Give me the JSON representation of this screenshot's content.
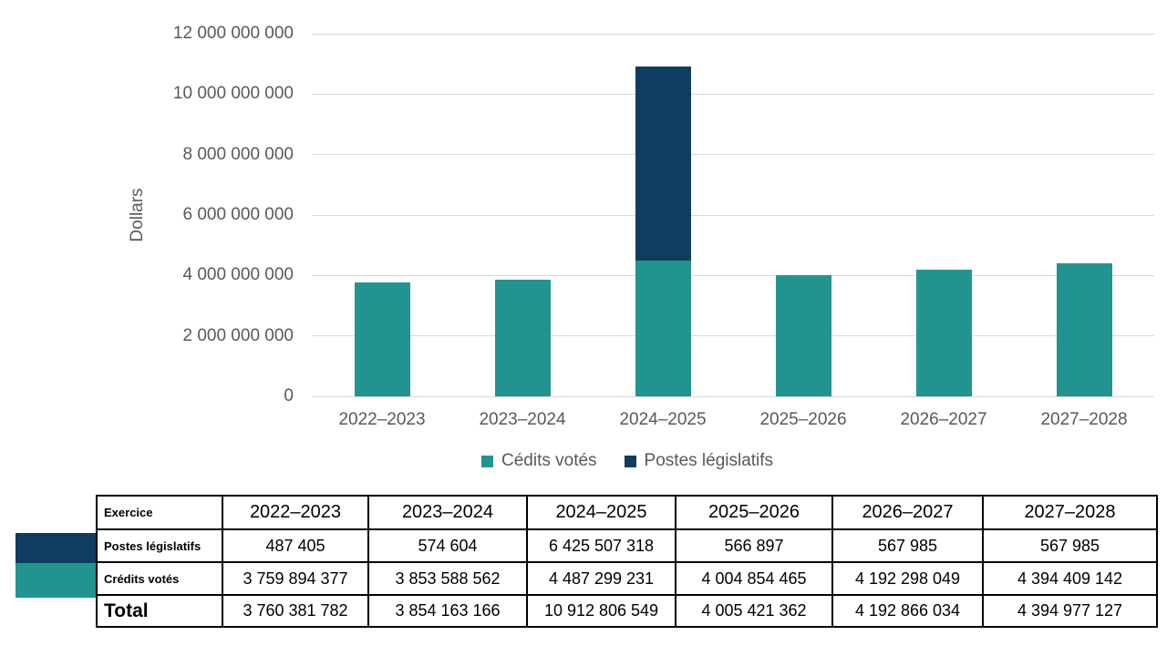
{
  "colors": {
    "teal": "#21948F",
    "navy": "#0E3D5F",
    "axis_text": "#595959",
    "gridline": "#D9D9D9",
    "table_border": "#000000"
  },
  "chart_data": {
    "type": "bar",
    "stacked": true,
    "title": "",
    "xlabel": "",
    "ylabel": "Dollars",
    "ylim": [
      0,
      12000000000
    ],
    "ytick_step": 2000000000,
    "ytick_labels": [
      "0",
      "2 000 000 000",
      "4 000 000 000",
      "6 000 000 000",
      "8 000 000 000",
      "10 000 000 000",
      "12 000 000 000"
    ],
    "grid": true,
    "legend_position": "bottom",
    "categories": [
      "2022–2023",
      "2023–2024",
      "2024–2025",
      "2025–2026",
      "2026–2027",
      "2027–2028"
    ],
    "series": [
      {
        "name": "Cédits votés",
        "color": "teal",
        "values": [
          3759894377,
          3853588562,
          4487299231,
          4004854465,
          4192298049,
          4394409142
        ]
      },
      {
        "name": "Postes législatifs",
        "color": "navy",
        "values": [
          487405,
          574604,
          6425507318,
          566897,
          567985,
          567985
        ]
      }
    ]
  },
  "legend": {
    "items": [
      {
        "label": "Cédits votés",
        "color": "teal"
      },
      {
        "label": "Postes législatifs",
        "color": "navy"
      }
    ]
  },
  "table": {
    "corner_label": "Exercice",
    "columns": [
      "2022–2023",
      "2023–2024",
      "2024–2025",
      "2025–2026",
      "2026–2027",
      "2027–2028"
    ],
    "rows": [
      {
        "label": "Postes législatifs",
        "swatch": "navy",
        "values": [
          "487 405",
          "574 604",
          "6 425 507 318",
          "566 897",
          "567 985",
          "567 985"
        ]
      },
      {
        "label": "Crédits votés",
        "swatch": "teal",
        "values": [
          "3 759 894 377",
          "3 853 588 562",
          "4 487 299 231",
          "4 004 854 465",
          "4 192 298 049",
          "4 394 409 142"
        ]
      },
      {
        "label": "Total",
        "is_total": true,
        "values": [
          "3 760 381 782",
          "3 854 163 166",
          "10 912 806 549",
          "4 005 421 362",
          "4 192 866 034",
          "4 394 977 127"
        ]
      }
    ]
  }
}
